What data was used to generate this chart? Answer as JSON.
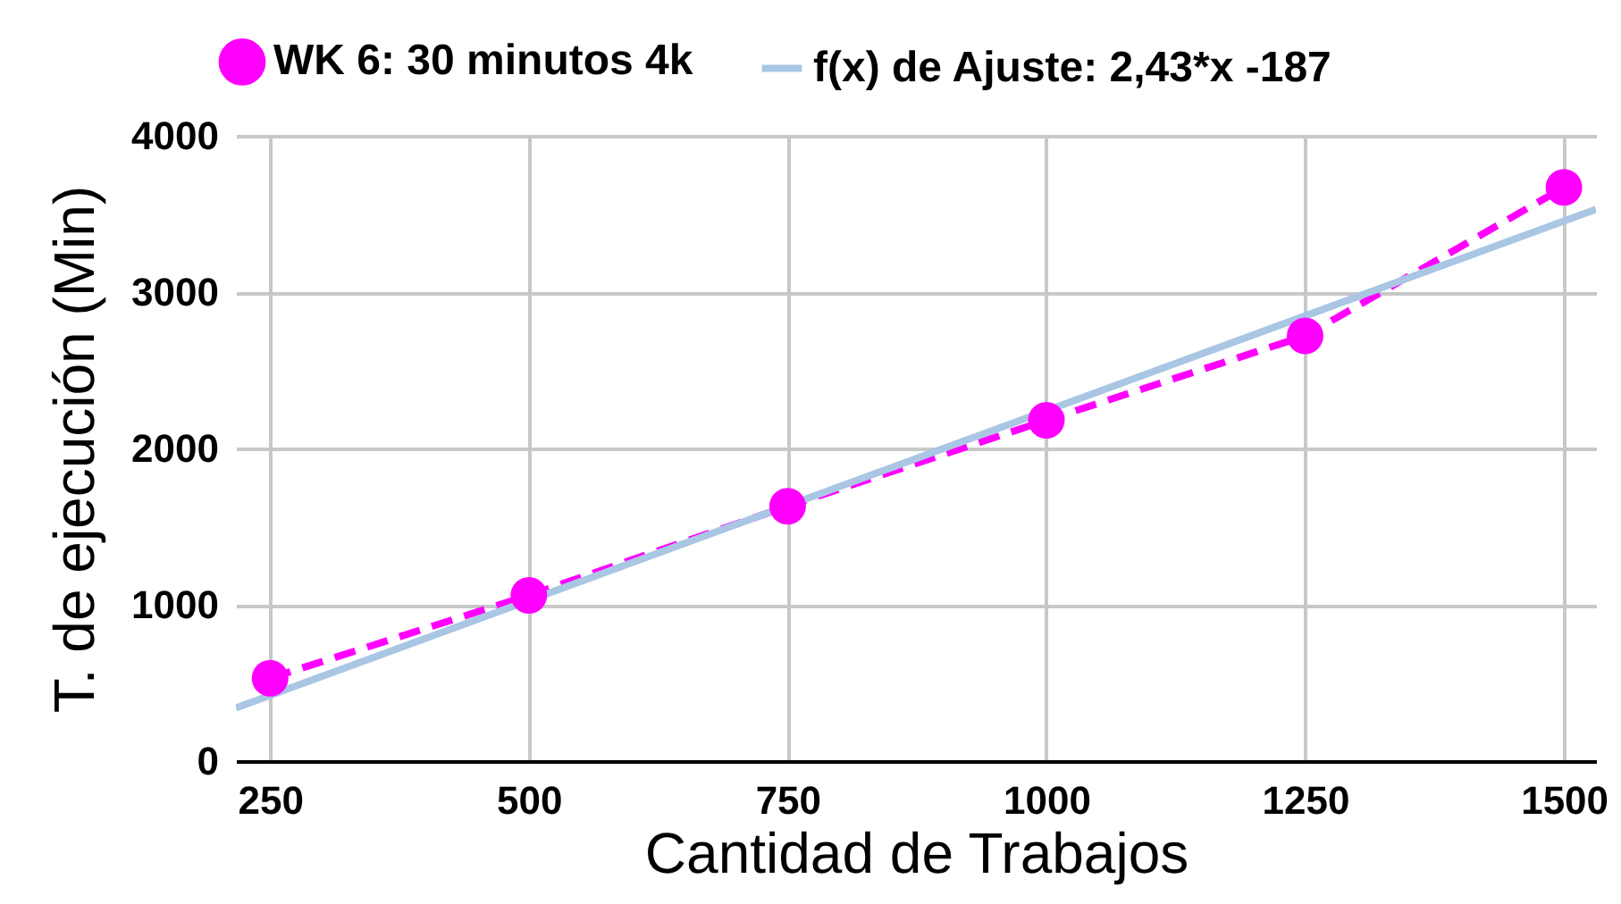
{
  "chart_data": {
    "type": "line",
    "xlabel": "Cantidad de Trabajos",
    "ylabel": "T. de ejecución (Min)",
    "x": [
      250,
      500,
      750,
      1000,
      1250,
      1500
    ],
    "series": [
      {
        "name": "WK 6: 30 minutos 4k",
        "color": "#ff00ff",
        "values": [
          530,
          1060,
          1630,
          2180,
          2720,
          3670
        ],
        "marker": "circle",
        "line_style": "dashed"
      },
      {
        "name": "f(x) de Ajuste: 2,43*x -187",
        "color": "#a9c6e3",
        "type": "line",
        "x": [
          217,
          1531
        ],
        "values": [
          340,
          3530
        ],
        "marker": "none",
        "line_style": "solid"
      }
    ],
    "xlim": [
      217,
      1531
    ],
    "xticks": [
      250,
      500,
      750,
      1000,
      1250,
      1500
    ],
    "ylim": [
      0,
      4000
    ],
    "yticks": [
      0,
      1000,
      2000,
      3000,
      4000
    ],
    "grid": true,
    "legend": "top"
  }
}
